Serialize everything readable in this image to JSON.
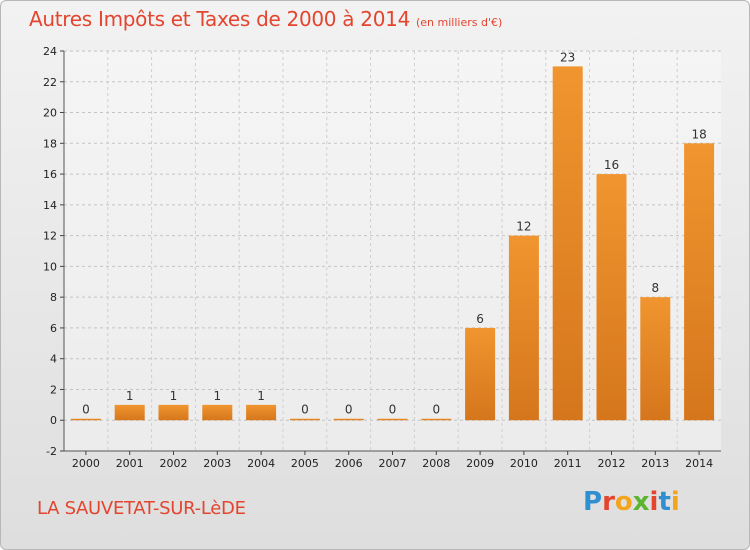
{
  "header": {
    "title": "Autres Impôts et Taxes de 2000 à 2014",
    "unit": "(en milliers d'€)"
  },
  "footer": {
    "location": "LA SAUVETAT-SUR-LèDE",
    "brand_letters": [
      "P",
      "r",
      "o",
      "x",
      "i",
      "t",
      "i"
    ],
    "brand_colors": [
      "#2f8fd1",
      "#e3452e",
      "#f2a51d",
      "#5cb531",
      "#e3452e",
      "#2f8fd1",
      "#f2a51d"
    ]
  },
  "chart_data": {
    "type": "bar",
    "title": "Autres Impôts et Taxes de 2000 à 2014",
    "subtitle": "(en milliers d'€)",
    "xlabel": "",
    "ylabel": "",
    "categories": [
      "2000",
      "2001",
      "2002",
      "2003",
      "2004",
      "2005",
      "2006",
      "2007",
      "2008",
      "2009",
      "2010",
      "2011",
      "2012",
      "2013",
      "2014"
    ],
    "values": [
      0,
      1,
      1,
      1,
      1,
      0,
      0,
      0,
      0,
      6,
      12,
      23,
      16,
      8,
      18
    ],
    "ylim": [
      -2,
      24
    ],
    "yticks": [
      -2,
      0,
      2,
      4,
      6,
      8,
      10,
      12,
      14,
      16,
      18,
      20,
      22,
      24
    ],
    "grid": true,
    "legend": "none",
    "bar_color": "#f0952f",
    "bar_color_dark": "#d5761c"
  }
}
